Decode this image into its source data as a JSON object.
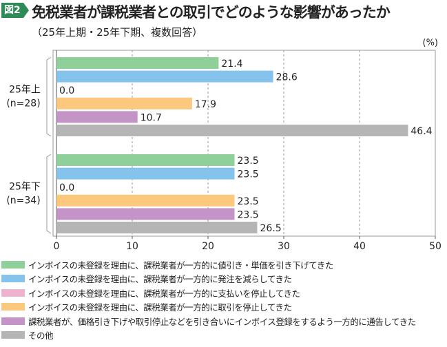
{
  "figure_label": "図2",
  "title": "免税業者が課税業者との取引でどのような影響があったか",
  "subtitle": "（25年上期・25年下期、複数回答）",
  "chart_data": {
    "type": "bar",
    "orientation": "horizontal",
    "title": "免税業者が課税業者との取引でどのような影響があったか",
    "unit_label": "(%)",
    "xlim": [
      0,
      50
    ],
    "xticks": [
      "0",
      "10",
      "20",
      "30",
      "40",
      "50"
    ],
    "grid": true,
    "legend_position": "bottom",
    "groups": [
      {
        "label": "25年上",
        "n": "(n=28)",
        "values": [
          21.4,
          28.6,
          0.0,
          17.9,
          10.7,
          46.4
        ],
        "labels": [
          "21.4",
          "28.6",
          "0.0",
          "17.9",
          "10.7",
          "46.4"
        ]
      },
      {
        "label": "25年下",
        "n": "(n=34)",
        "values": [
          23.5,
          23.5,
          0.0,
          23.5,
          23.5,
          26.5
        ],
        "labels": [
          "23.5",
          "23.5",
          "0.0",
          "23.5",
          "23.5",
          "26.5"
        ]
      }
    ],
    "series": [
      {
        "name": "インボイスの未登録を理由に、課税業者が一方的に値引き・単価を引き下げてきた",
        "color": "#8fcf9a"
      },
      {
        "name": "インボイスの未登録を理由に、課税業者が一方的に発注を減らしてきた",
        "color": "#86c3ec"
      },
      {
        "name": "インボイスの未登録を理由に、課税業者が一方的に支払いを停止してきた",
        "color": "#f0b3cf"
      },
      {
        "name": "インボイスの未登録を理由に、課税業者が一方的に取引を停止してきた",
        "color": "#fbc87e"
      },
      {
        "name": "課税業者が、価格引き下げや取引停止などを引き合いにインボイス登録をするよう一方的に通告してきた",
        "color": "#c394c5"
      },
      {
        "name": "その他",
        "color": "#b5b5b5"
      }
    ]
  }
}
